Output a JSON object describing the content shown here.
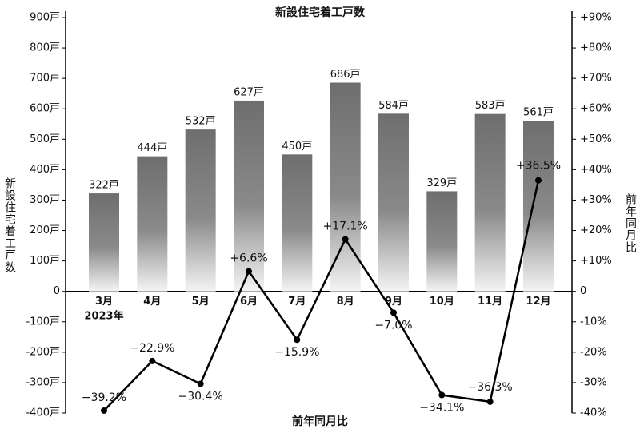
{
  "chart_data": {
    "type": "bar_line",
    "title": "新設住宅着工戸数",
    "xlabel": "前年同月比",
    "ylabel": "新設住宅着工戸数",
    "y2label": "前年同月比",
    "year_label": "2023年",
    "categories": [
      "3月",
      "4月",
      "5月",
      "6月",
      "7月",
      "8月",
      "9月",
      "10月",
      "11月",
      "12月"
    ],
    "series": [
      {
        "type": "bar",
        "color": "#6e6e6e",
        "values": [
          322,
          444,
          532,
          627,
          450,
          686,
          584,
          329,
          583,
          561
        ],
        "value_labels": [
          "322戸",
          "444戸",
          "532戸",
          "627戸",
          "450戸",
          "686戸",
          "584戸",
          "329戸",
          "583戸",
          "561戸"
        ]
      },
      {
        "type": "line",
        "axis": "y2",
        "color": "#000000",
        "values": [
          -39.2,
          -22.9,
          -30.4,
          6.6,
          -15.9,
          17.1,
          -7.0,
          -34.1,
          -36.3,
          36.5
        ],
        "value_labels": [
          "−39.2%",
          "−22.9%",
          "−30.4%",
          "+6.6%",
          "−15.9%",
          "+17.1%",
          "−7.0%",
          "−34.1%",
          "−36.3%",
          "+36.5%"
        ]
      }
    ],
    "ylim": [
      -400,
      900
    ],
    "yticks": [
      {
        "value": -400,
        "label": "-400戸"
      },
      {
        "value": -300,
        "label": "-300戸"
      },
      {
        "value": -200,
        "label": "-200戸"
      },
      {
        "value": -100,
        "label": "-100戸"
      },
      0,
      {
        "value": 100,
        "label": "100戸"
      },
      {
        "value": 200,
        "label": "200戸"
      },
      {
        "value": 300,
        "label": "300戸"
      },
      {
        "value": 400,
        "label": "400戸"
      },
      {
        "value": 500,
        "label": "500戸"
      },
      {
        "value": 600,
        "label": "600戸"
      },
      {
        "value": 700,
        "label": "700戸"
      },
      {
        "value": 800,
        "label": "800戸"
      },
      {
        "value": 900,
        "label": "900戸"
      }
    ],
    "y2lim": [
      -40,
      90
    ],
    "y2ticks": [
      {
        "value": -40,
        "label": "-40%"
      },
      {
        "value": -30,
        "label": "-30%"
      },
      {
        "value": -20,
        "label": "-20%"
      },
      {
        "value": -10,
        "label": "-10%"
      },
      0,
      {
        "value": 10,
        "label": "+10%"
      },
      {
        "value": 20,
        "label": "+20%"
      },
      {
        "value": 30,
        "label": "+30%"
      },
      {
        "value": 40,
        "label": "+40%"
      },
      {
        "value": 50,
        "label": "+50%"
      },
      {
        "value": 60,
        "label": "+60%"
      },
      {
        "value": 70,
        "label": "+70%"
      },
      {
        "value": 80,
        "label": "+80%"
      },
      {
        "value": 90,
        "label": "+90%"
      }
    ]
  }
}
